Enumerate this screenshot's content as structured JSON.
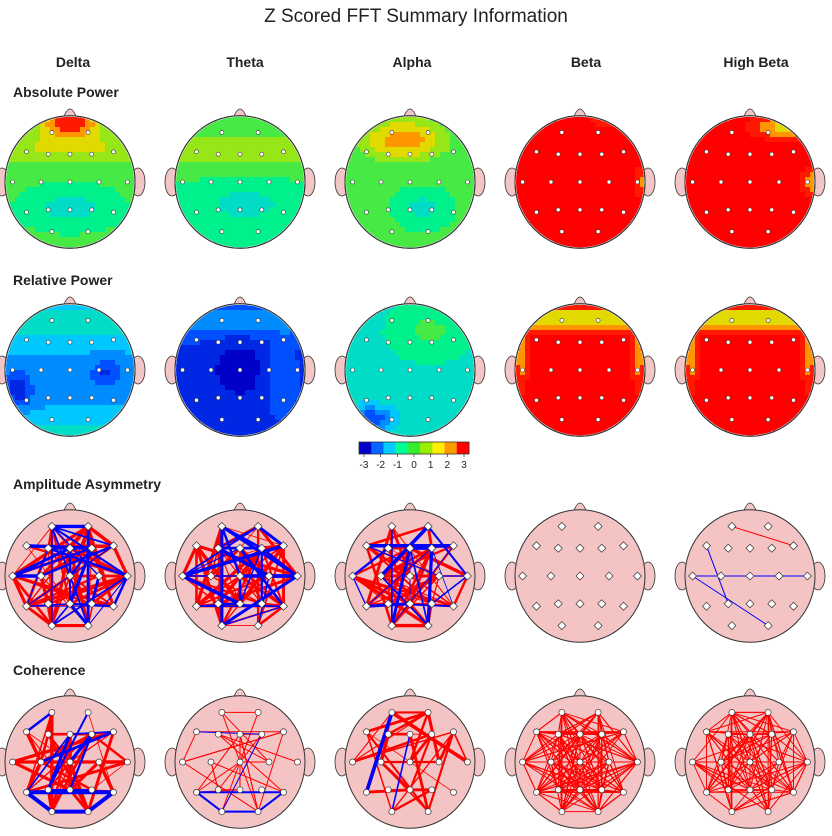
{
  "title": "Z Scored FFT Summary Information",
  "bands": [
    "Delta",
    "Theta",
    "Alpha",
    "Beta",
    "High Beta"
  ],
  "rows": [
    "Absolute Power",
    "Relative Power",
    "Amplitude Asymmetry",
    "Coherence"
  ],
  "colorbar": {
    "ticks": [
      "-3",
      "-2",
      "-1",
      "0",
      "1",
      "2",
      "3"
    ],
    "colors": [
      "#0000cc",
      "#0066ff",
      "#00ccff",
      "#00ff99",
      "#33ee33",
      "#99ee00",
      "#ffee00",
      "#ff9900",
      "#ff0000"
    ]
  },
  "connection_colors": {
    "increased": "#ff0000",
    "decreased": "#0000ff"
  },
  "head_fill_connectivity": "#f4c4c4"
}
